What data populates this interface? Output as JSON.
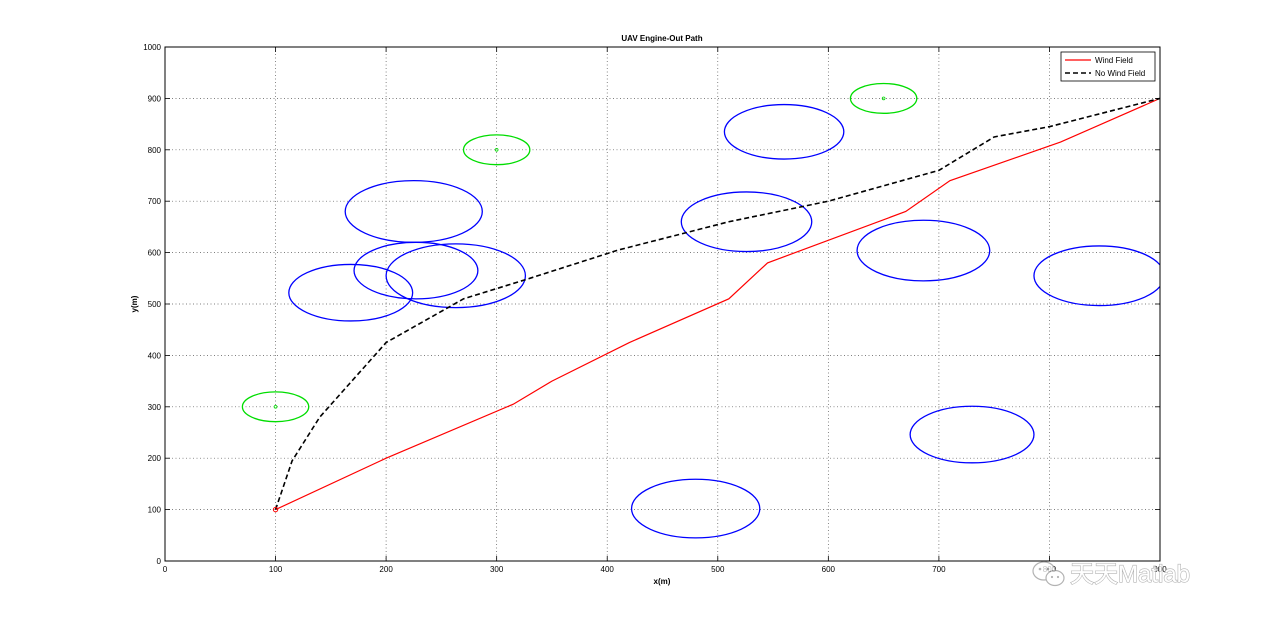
{
  "chart_data": {
    "type": "line",
    "title": "UAV Engine-Out Path",
    "xlabel": "x(m)",
    "ylabel": "y(m)",
    "xlim": [
      0,
      900
    ],
    "ylim": [
      0,
      1000
    ],
    "xticks": [
      0,
      100,
      200,
      300,
      400,
      500,
      600,
      700,
      800,
      900
    ],
    "yticks": [
      0,
      100,
      200,
      300,
      400,
      500,
      600,
      700,
      800,
      900,
      1000
    ],
    "grid": true,
    "legend": {
      "position": "top-right",
      "entries": [
        "Wind Field",
        "No Wind Field"
      ]
    },
    "series": [
      {
        "name": "Wind Field",
        "color": "#ff0000",
        "style": "solid",
        "points": [
          [
            100,
            100
          ],
          [
            200,
            200
          ],
          [
            315,
            305
          ],
          [
            350,
            350
          ],
          [
            420,
            425
          ],
          [
            510,
            510
          ],
          [
            545,
            580
          ],
          [
            670,
            680
          ],
          [
            710,
            740
          ],
          [
            810,
            815
          ],
          [
            900,
            900
          ]
        ]
      },
      {
        "name": "No Wind Field",
        "color": "#000000",
        "style": "dashed",
        "points": [
          [
            100,
            100
          ],
          [
            115,
            195
          ],
          [
            140,
            280
          ],
          [
            200,
            425
          ],
          [
            270,
            510
          ],
          [
            330,
            550
          ],
          [
            410,
            605
          ],
          [
            510,
            660
          ],
          [
            600,
            700
          ],
          [
            700,
            760
          ],
          [
            750,
            825
          ],
          [
            800,
            845
          ],
          [
            900,
            900
          ]
        ]
      }
    ],
    "start_marker": {
      "x": 100,
      "y": 100,
      "color": "#ff0000"
    },
    "obstacles": {
      "color": "#0000ff",
      "items": [
        {
          "cx": 168,
          "cy": 522,
          "rx": 56,
          "ry": 55
        },
        {
          "cx": 225,
          "cy": 680,
          "rx": 62,
          "ry": 60
        },
        {
          "cx": 227,
          "cy": 565,
          "rx": 56,
          "ry": 55
        },
        {
          "cx": 263,
          "cy": 555,
          "rx": 63,
          "ry": 62
        },
        {
          "cx": 480,
          "cy": 102,
          "rx": 58,
          "ry": 57
        },
        {
          "cx": 526,
          "cy": 660,
          "rx": 59,
          "ry": 58
        },
        {
          "cx": 560,
          "cy": 835,
          "rx": 54,
          "ry": 53
        },
        {
          "cx": 686,
          "cy": 604,
          "rx": 60,
          "ry": 59
        },
        {
          "cx": 730,
          "cy": 246,
          "rx": 56,
          "ry": 55
        },
        {
          "cx": 845,
          "cy": 555,
          "rx": 59,
          "ry": 58
        }
      ]
    },
    "landing_sites": {
      "color": "#00dd00",
      "items": [
        {
          "cx": 100,
          "cy": 300,
          "rx": 30,
          "ry": 29
        },
        {
          "cx": 300,
          "cy": 800,
          "rx": 30,
          "ry": 29
        },
        {
          "cx": 650,
          "cy": 900,
          "rx": 30,
          "ry": 29
        }
      ]
    }
  },
  "watermark": {
    "text": "天天Matlab",
    "icon": "wechat-icon"
  }
}
